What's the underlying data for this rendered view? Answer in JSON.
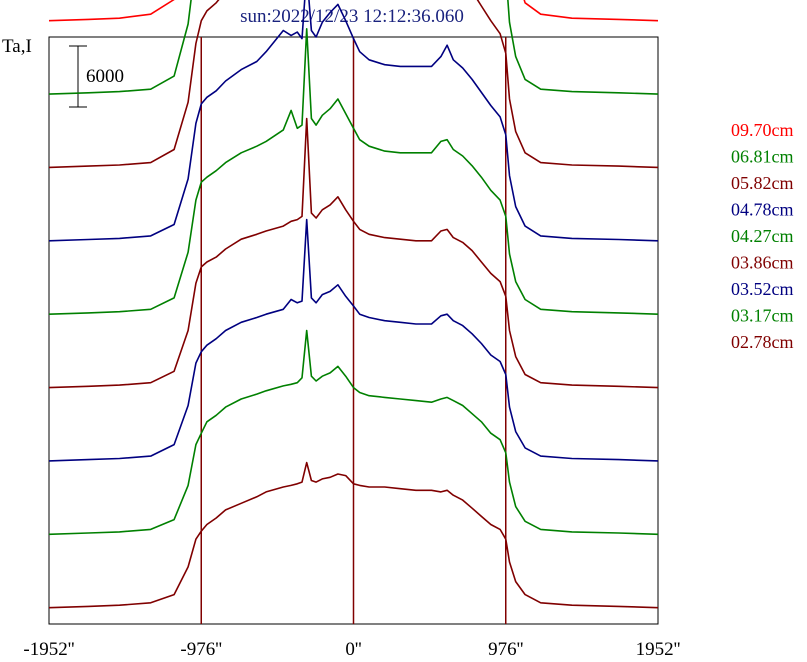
{
  "chart_data": {
    "type": "line",
    "title": "sun:2022/12/23 12:12:36.060",
    "ylabel": "Ta,I",
    "scale_bar_label": "6000",
    "x_tick_labels": [
      "-1952''",
      "-976''",
      "0''",
      "976''",
      "1952''"
    ],
    "x_ticks": [
      -1952,
      -976,
      0,
      976,
      1952
    ],
    "xlim": [
      -1952,
      1952
    ],
    "vlines": [
      -976,
      0,
      976
    ],
    "ylim": [
      0,
      36000
    ],
    "colors": {
      "red": "#ff0000",
      "green": "#008000",
      "maroon": "#800000",
      "navy": "#000080"
    },
    "x": [
      -1952,
      -1700,
      -1500,
      -1300,
      -1150,
      -1060,
      -1010,
      -976,
      -940,
      -880,
      -820,
      -720,
      -620,
      -560,
      -450,
      -400,
      -360,
      -330,
      -300,
      -270,
      -240,
      -200,
      -150,
      -100,
      -50,
      0,
      40,
      100,
      200,
      300,
      400,
      500,
      560,
      600,
      640,
      700,
      760,
      820,
      880,
      940,
      976,
      1000,
      1040,
      1100,
      1200,
      1400,
      1700,
      1952
    ],
    "series": [
      {
        "name": "02.78cm",
        "color": "maroon",
        "offset": 1000,
        "values": [
          0,
          80,
          150,
          300,
          800,
          2500,
          4200,
          4700,
          5100,
          5500,
          6000,
          6400,
          6800,
          7100,
          7400,
          7500,
          7600,
          7700,
          8900,
          7800,
          7700,
          7900,
          8000,
          8200,
          8100,
          7600,
          7500,
          7400,
          7400,
          7300,
          7200,
          7200,
          7100,
          7200,
          6900,
          6600,
          6100,
          5600,
          5100,
          4800,
          4200,
          2800,
          1600,
          800,
          300,
          150,
          80,
          0
        ]
      },
      {
        "name": "03.17cm",
        "color": "green",
        "offset": 5500,
        "values": [
          0,
          80,
          150,
          300,
          900,
          3000,
          5500,
          6200,
          6900,
          7300,
          7800,
          8300,
          8600,
          8800,
          9100,
          9200,
          9300,
          9600,
          12500,
          9700,
          9400,
          9700,
          9900,
          10300,
          9700,
          9000,
          8700,
          8500,
          8400,
          8300,
          8200,
          8100,
          8300,
          8400,
          8200,
          7900,
          7400,
          6900,
          6200,
          5800,
          5000,
          3200,
          1700,
          800,
          300,
          150,
          80,
          0
        ]
      },
      {
        "name": "03.52cm",
        "color": "navy",
        "offset": 10000,
        "values": [
          0,
          80,
          150,
          300,
          1000,
          3400,
          6000,
          6700,
          7100,
          7500,
          8000,
          8500,
          8800,
          9000,
          9300,
          9900,
          9700,
          9800,
          14800,
          10000,
          9700,
          10200,
          10400,
          10800,
          10100,
          9500,
          9000,
          8800,
          8600,
          8500,
          8400,
          8400,
          8900,
          9000,
          8600,
          8300,
          7800,
          7200,
          6500,
          6100,
          5300,
          3300,
          1800,
          800,
          300,
          150,
          80,
          0
        ]
      },
      {
        "name": "03.86cm",
        "color": "maroon",
        "offset": 14500,
        "values": [
          0,
          80,
          150,
          300,
          1000,
          3500,
          6400,
          7400,
          7700,
          8000,
          8500,
          9100,
          9400,
          9600,
          9900,
          10200,
          10300,
          10500,
          16500,
          10700,
          10400,
          10900,
          11200,
          11700,
          10900,
          10200,
          9700,
          9400,
          9200,
          9100,
          9000,
          9000,
          9600,
          9700,
          9200,
          8900,
          8400,
          7700,
          7000,
          6500,
          5600,
          3500,
          1900,
          800,
          300,
          150,
          80,
          0
        ]
      },
      {
        "name": "04.27cm",
        "color": "green",
        "offset": 19000,
        "values": [
          0,
          80,
          150,
          300,
          1000,
          3800,
          7000,
          8100,
          8400,
          8800,
          9300,
          9900,
          10300,
          10600,
          11300,
          12500,
          11400,
          11600,
          17500,
          12000,
          11600,
          12200,
          12600,
          13200,
          12300,
          11400,
          10700,
          10300,
          10000,
          9900,
          9900,
          9900,
          10600,
          10700,
          10100,
          9700,
          9100,
          8400,
          7600,
          7000,
          6000,
          3700,
          2000,
          900,
          300,
          150,
          80,
          0
        ]
      },
      {
        "name": "04.78cm",
        "color": "navy",
        "offset": 23500,
        "values": [
          0,
          80,
          150,
          300,
          1000,
          3800,
          7200,
          8400,
          8800,
          9200,
          9800,
          10500,
          11000,
          11600,
          12900,
          12600,
          12800,
          12400,
          16500,
          12900,
          12500,
          13400,
          14000,
          14500,
          13500,
          12400,
          11600,
          11100,
          10800,
          10700,
          10700,
          10700,
          11300,
          12000,
          11100,
          10600,
          9900,
          9100,
          8300,
          7600,
          6500,
          4000,
          2100,
          900,
          300,
          150,
          80,
          0
        ]
      },
      {
        "name": "05.82cm",
        "color": "maroon",
        "offset": 28000,
        "values": [
          0,
          80,
          150,
          300,
          1100,
          4000,
          7600,
          9000,
          9600,
          10100,
          10800,
          11700,
          12400,
          13200,
          14700,
          13800,
          13600,
          13100,
          18000,
          13600,
          13400,
          14400,
          15100,
          16900,
          14700,
          13400,
          12400,
          11800,
          11400,
          11300,
          11300,
          11400,
          12400,
          13300,
          12200,
          11600,
          10800,
          9900,
          9000,
          8200,
          7000,
          4200,
          2200,
          900,
          300,
          150,
          80,
          0
        ]
      },
      {
        "name": "06.81cm",
        "color": "green",
        "offset": 32500,
        "values": [
          0,
          80,
          150,
          300,
          1100,
          4300,
          8200,
          9800,
          10500,
          11200,
          12100,
          13300,
          14400,
          15200,
          16800,
          15900,
          15700,
          15400,
          20000,
          16000,
          15700,
          16900,
          17600,
          19000,
          16700,
          14900,
          13700,
          12900,
          12500,
          12300,
          12300,
          12400,
          13800,
          14800,
          13600,
          12800,
          11900,
          10900,
          9800,
          8900,
          7500,
          4400,
          2300,
          900,
          300,
          150,
          80,
          0
        ]
      },
      {
        "name": "09.70cm",
        "color": "red",
        "offset": 37000,
        "values": [
          0,
          80,
          150,
          400,
          1300,
          5500,
          11000,
          11600,
          10800,
          12000,
          13500,
          15600,
          17400,
          19200,
          22500,
          20700,
          20400,
          20000,
          26000,
          21000,
          20600,
          22000,
          23200,
          26800,
          21800,
          18800,
          16600,
          15400,
          14800,
          14700,
          14700,
          14900,
          16800,
          18700,
          16900,
          15900,
          14700,
          13600,
          12200,
          11100,
          9500,
          5800,
          3000,
          1100,
          400,
          150,
          80,
          0
        ]
      }
    ]
  }
}
